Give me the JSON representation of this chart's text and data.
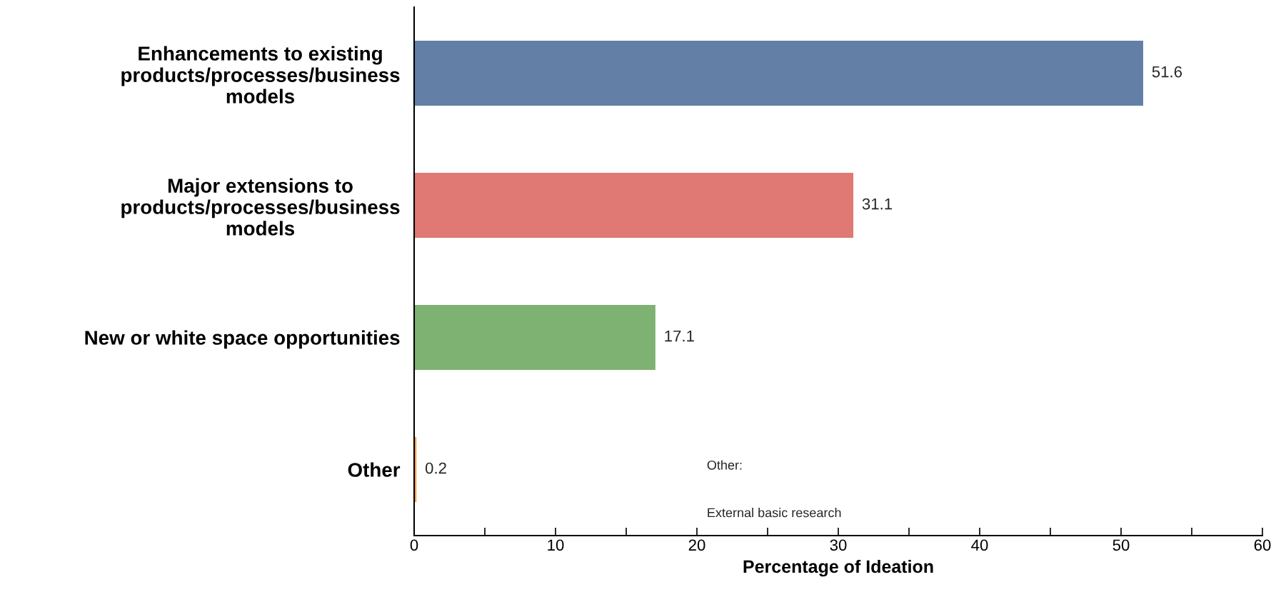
{
  "chart_data": {
    "type": "bar",
    "orientation": "horizontal",
    "categories": [
      "Enhancements to existing\nproducts/processes/business\nmodels",
      "Major extensions to\nproducts/processes/business\nmodels",
      "New or white space opportunities",
      "Other"
    ],
    "values": [
      51.6,
      31.1,
      17.1,
      0.2
    ],
    "colors": [
      "#637fa6",
      "#e07873",
      "#7db272",
      "#f5a04a"
    ],
    "data_labels": true,
    "xlabel": "Percentage of Ideation",
    "xlim": [
      0,
      60
    ],
    "xticks": [
      0,
      {
        "value": 5,
        "label": null
      },
      10,
      {
        "value": 15,
        "label": null
      },
      20,
      {
        "value": 25,
        "label": null
      },
      30,
      {
        "value": 35,
        "label": null
      },
      40,
      {
        "value": 45,
        "label": null
      },
      50,
      {
        "value": 55,
        "label": null
      },
      60
    ],
    "annotations": [
      "Other:",
      "External basic research"
    ],
    "grid": false,
    "legend": false
  }
}
